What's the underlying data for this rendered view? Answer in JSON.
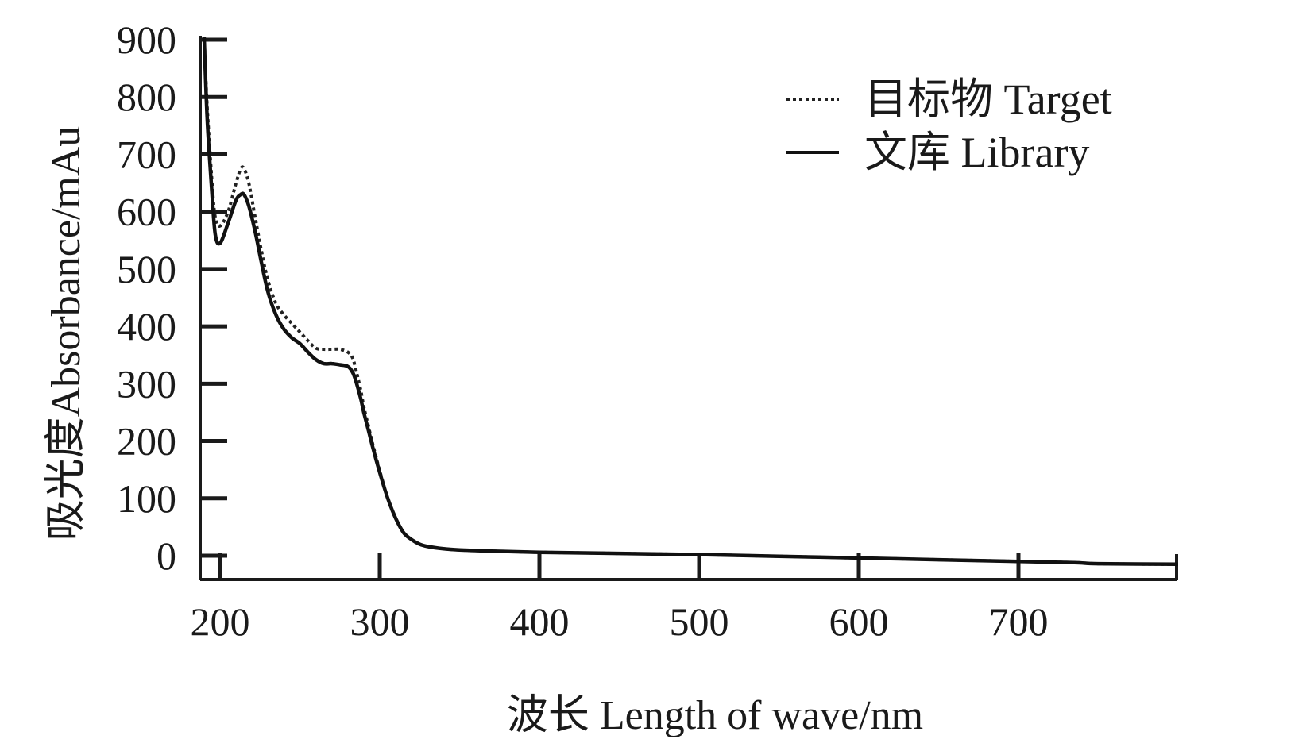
{
  "chart_data": {
    "type": "line",
    "title": "",
    "xlabel": "波长 Length of wave/nm",
    "ylabel": "吸光度Absorbance/mAu",
    "xlim": [
      190,
      800
    ],
    "ylim": [
      -45,
      925
    ],
    "xticks": [
      200,
      300,
      400,
      500,
      600,
      700
    ],
    "yticks": [
      0,
      100,
      200,
      300,
      400,
      500,
      600,
      700,
      800,
      900
    ],
    "grid": false,
    "legend_position": "top-right",
    "series": [
      {
        "name": "目标物 Target",
        "style": "dotted",
        "color": "#222222",
        "x": [
          190,
          192,
          195,
          197,
          200,
          205,
          210,
          213,
          215,
          218,
          222,
          226,
          230,
          235,
          240,
          245,
          250,
          255,
          260,
          265,
          270,
          275,
          280,
          283,
          285,
          288,
          290,
          293,
          296,
          300,
          305,
          310,
          315,
          320,
          325,
          330,
          340,
          350,
          370,
          400,
          450,
          500,
          550,
          600,
          650,
          700,
          735,
          750,
          800
        ],
        "y": [
          905,
          780,
          650,
          590,
          575,
          600,
          650,
          675,
          675,
          650,
          590,
          530,
          480,
          440,
          420,
          405,
          390,
          375,
          362,
          360,
          360,
          360,
          355,
          345,
          325,
          290,
          260,
          225,
          190,
          148,
          100,
          65,
          40,
          28,
          20,
          16,
          12,
          10,
          8,
          6,
          4,
          2,
          -1,
          -4,
          -7,
          -10,
          -12,
          -14,
          -15
        ]
      },
      {
        "name": "文库 Library",
        "style": "solid",
        "color": "#111111",
        "x": [
          190,
          192,
          195,
          197,
          200,
          205,
          210,
          213,
          215,
          218,
          222,
          226,
          230,
          235,
          240,
          245,
          250,
          255,
          260,
          265,
          270,
          275,
          280,
          283,
          285,
          288,
          290,
          293,
          296,
          300,
          305,
          310,
          315,
          320,
          325,
          330,
          340,
          350,
          370,
          400,
          450,
          500,
          550,
          600,
          650,
          700,
          735,
          750,
          800
        ],
        "y": [
          905,
          760,
          630,
          560,
          545,
          580,
          620,
          630,
          630,
          610,
          565,
          510,
          460,
          420,
          395,
          380,
          370,
          355,
          342,
          335,
          335,
          333,
          330,
          320,
          305,
          275,
          250,
          218,
          185,
          145,
          100,
          65,
          40,
          28,
          20,
          16,
          12,
          10,
          8,
          6,
          4,
          2,
          -1,
          -4,
          -7,
          -10,
          -12,
          -14,
          -15
        ]
      }
    ]
  }
}
